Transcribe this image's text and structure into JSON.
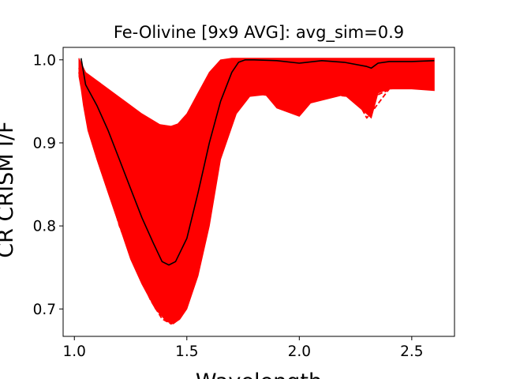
{
  "chart_data": {
    "type": "line",
    "title": "Fe-Olivine [9x9 AVG]: avg_sim=0.9",
    "xlabel": "Wavelength",
    "ylabel": "CR CRISM I/F",
    "xlim": [
      0.95,
      2.69
    ],
    "ylim": [
      0.667,
      1.015
    ],
    "xticks": [
      {
        "value": 1.0,
        "label": "1.0"
      },
      {
        "value": 1.5,
        "label": "1.5"
      },
      {
        "value": 2.0,
        "label": "2.0"
      },
      {
        "value": 2.5,
        "label": "2.5"
      }
    ],
    "yticks": [
      {
        "value": 0.7,
        "label": "0.7"
      },
      {
        "value": 0.8,
        "label": "0.8"
      },
      {
        "value": 0.9,
        "label": "0.9"
      },
      {
        "value": 1.0,
        "label": "1.0"
      }
    ],
    "grid": false,
    "legend": "none",
    "colors": {
      "ensemble": "#ff0000",
      "average": "#000000"
    },
    "band_upper": [
      [
        1.02,
        1.002
      ],
      [
        1.05,
        0.985
      ],
      [
        1.1,
        0.975
      ],
      [
        1.2,
        0.955
      ],
      [
        1.3,
        0.935
      ],
      [
        1.38,
        0.922
      ],
      [
        1.43,
        0.92
      ],
      [
        1.46,
        0.923
      ],
      [
        1.5,
        0.935
      ],
      [
        1.55,
        0.96
      ],
      [
        1.6,
        0.985
      ],
      [
        1.65,
        1.0
      ],
      [
        1.7,
        1.002
      ],
      [
        2.6,
        1.002
      ]
    ],
    "band_lower": [
      [
        2.6,
        0.963
      ],
      [
        2.5,
        0.965
      ],
      [
        2.4,
        0.965
      ],
      [
        2.35,
        0.96
      ],
      [
        2.32,
        0.93
      ],
      [
        2.3,
        0.935
      ],
      [
        2.2,
        0.958
      ],
      [
        2.05,
        0.948
      ],
      [
        2.0,
        0.932
      ],
      [
        1.9,
        0.942
      ],
      [
        1.85,
        0.958
      ],
      [
        1.78,
        0.956
      ],
      [
        1.72,
        0.935
      ],
      [
        1.65,
        0.88
      ],
      [
        1.6,
        0.8
      ],
      [
        1.55,
        0.74
      ],
      [
        1.5,
        0.7
      ],
      [
        1.47,
        0.688
      ],
      [
        1.44,
        0.682
      ],
      [
        1.41,
        0.685
      ],
      [
        1.36,
        0.7
      ],
      [
        1.3,
        0.73
      ],
      [
        1.25,
        0.76
      ],
      [
        1.2,
        0.8
      ],
      [
        1.15,
        0.84
      ],
      [
        1.1,
        0.88
      ],
      [
        1.06,
        0.915
      ],
      [
        1.04,
        0.945
      ],
      [
        1.03,
        0.965
      ],
      [
        1.02,
        0.98
      ]
    ],
    "series": [
      {
        "style": "solid",
        "points": [
          [
            1.03,
            1.002
          ],
          [
            1.05,
            0.97
          ],
          [
            1.08,
            0.955
          ],
          [
            1.1,
            0.945
          ],
          [
            1.15,
            0.915
          ],
          [
            1.2,
            0.88
          ],
          [
            1.25,
            0.845
          ],
          [
            1.3,
            0.81
          ],
          [
            1.35,
            0.78
          ],
          [
            1.39,
            0.757
          ],
          [
            1.42,
            0.753
          ],
          [
            1.45,
            0.757
          ],
          [
            1.5,
            0.785
          ],
          [
            1.55,
            0.84
          ],
          [
            1.6,
            0.9
          ],
          [
            1.65,
            0.95
          ],
          [
            1.7,
            0.985
          ],
          [
            1.73,
            0.997
          ],
          [
            1.76,
            1.0
          ],
          [
            1.8,
            1.0
          ],
          [
            1.9,
            0.999
          ],
          [
            2.0,
            0.996
          ],
          [
            2.1,
            0.999
          ],
          [
            2.2,
            0.997
          ],
          [
            2.3,
            0.992
          ],
          [
            2.32,
            0.99
          ],
          [
            2.35,
            0.996
          ],
          [
            2.4,
            0.998
          ],
          [
            2.5,
            0.998
          ],
          [
            2.6,
            0.999
          ]
        ]
      },
      {
        "style": "dashed",
        "points": [
          [
            1.02,
            0.985
          ],
          [
            1.05,
            0.94
          ],
          [
            1.08,
            0.92
          ],
          [
            1.12,
            0.875
          ],
          [
            1.2,
            0.8
          ],
          [
            1.28,
            0.745
          ],
          [
            1.34,
            0.71
          ],
          [
            1.39,
            0.688
          ],
          [
            1.43,
            0.682
          ],
          [
            1.47,
            0.688
          ],
          [
            1.52,
            0.72
          ],
          [
            1.58,
            0.79
          ],
          [
            1.63,
            0.865
          ],
          [
            1.68,
            0.915
          ],
          [
            1.72,
            0.94
          ],
          [
            1.75,
            0.955
          ],
          [
            1.8,
            0.96
          ],
          [
            1.9,
            0.955
          ],
          [
            2.0,
            0.935
          ],
          [
            2.05,
            0.95
          ],
          [
            2.15,
            0.958
          ],
          [
            2.25,
            0.955
          ],
          [
            2.3,
            0.93
          ],
          [
            2.33,
            0.94
          ],
          [
            2.4,
            0.965
          ],
          [
            2.5,
            0.968
          ],
          [
            2.6,
            0.968
          ]
        ]
      },
      {
        "style": "dashed",
        "points": [
          [
            1.02,
            0.99
          ],
          [
            1.06,
            0.95
          ],
          [
            1.12,
            0.89
          ],
          [
            1.2,
            0.825
          ],
          [
            1.28,
            0.77
          ],
          [
            1.35,
            0.735
          ],
          [
            1.4,
            0.718
          ],
          [
            1.45,
            0.72
          ],
          [
            1.5,
            0.745
          ],
          [
            1.56,
            0.8
          ],
          [
            1.62,
            0.87
          ],
          [
            1.67,
            0.925
          ],
          [
            1.72,
            0.955
          ],
          [
            1.78,
            0.97
          ],
          [
            1.9,
            0.966
          ],
          [
            2.0,
            0.948
          ],
          [
            2.1,
            0.962
          ],
          [
            2.25,
            0.962
          ],
          [
            2.3,
            0.945
          ],
          [
            2.35,
            0.958
          ],
          [
            2.45,
            0.97
          ],
          [
            2.6,
            0.972
          ]
        ]
      }
    ]
  }
}
